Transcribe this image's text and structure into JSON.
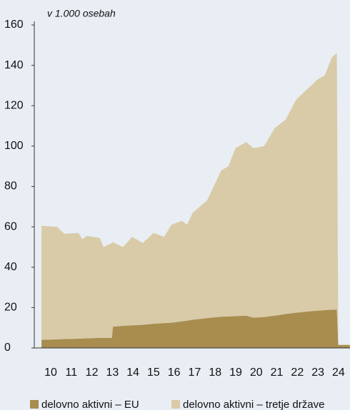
{
  "chart_data": {
    "type": "stacked_area",
    "subtitle": "v 1.000 osebah",
    "x": [
      10.05,
      10.81,
      11.16,
      11.85,
      12.03,
      12.27,
      12.89,
      13.07,
      13.48,
      13.52,
      14.01,
      14.46,
      14.98,
      15.5,
      16.02,
      16.37,
      16.89,
      17.13,
      17.41,
      18.1,
      18.8,
      19.14,
      19.49,
      20.01,
      20.36,
      20.88,
      21.4,
      21.92,
      22.44,
      22.96,
      23.48,
      23.83,
      24.18,
      24.42,
      24.49,
      25.05
    ],
    "series": [
      {
        "name": "delovno aktivni – EU",
        "color": "#a88d4f",
        "values": [
          4,
          4.3,
          4.4,
          4.6,
          4.7,
          4.8,
          5,
          5,
          5,
          10.5,
          11,
          11.2,
          11.5,
          12,
          12.3,
          12.5,
          13.2,
          13.5,
          14,
          14.8,
          15.5,
          15.6,
          15.8,
          16,
          15,
          15.3,
          16,
          16.8,
          17.5,
          18,
          18.5,
          18.7,
          19,
          19,
          1.5,
          1.5
        ]
      },
      {
        "name": "delovno aktivni – tretje države",
        "color": "#d9cba8",
        "values": [
          56.5,
          55.7,
          52.1,
          52.4,
          49.3,
          50.7,
          49.5,
          45,
          47,
          42,
          39,
          43.8,
          40.5,
          45,
          42.7,
          48.5,
          49.8,
          47.5,
          53,
          58.2,
          72.5,
          74.4,
          83.2,
          86,
          84,
          84.7,
          93,
          96.2,
          105.5,
          110,
          114.5,
          116.3,
          125,
          127,
          0,
          0
        ]
      }
    ],
    "xlim": [
      9.7,
      25.06
    ],
    "xticks": [
      {
        "value": 10.5,
        "label": "10"
      },
      {
        "value": 11.5,
        "label": "11"
      },
      {
        "value": 12.5,
        "label": "12"
      },
      {
        "value": 13.5,
        "label": "13"
      },
      {
        "value": 14.5,
        "label": "14"
      },
      {
        "value": 15.5,
        "label": "15"
      },
      {
        "value": 16.5,
        "label": "16"
      },
      {
        "value": 17.5,
        "label": "17"
      },
      {
        "value": 18.5,
        "label": "18"
      },
      {
        "value": 19.5,
        "label": "19"
      },
      {
        "value": 20.5,
        "label": "20"
      },
      {
        "value": 21.5,
        "label": "21"
      },
      {
        "value": 22.5,
        "label": "22"
      },
      {
        "value": 23.5,
        "label": "23"
      },
      {
        "value": 24.5,
        "label": "24"
      }
    ],
    "ylim": [
      0,
      160
    ],
    "yticks": [
      0,
      20,
      40,
      60,
      80,
      100,
      120,
      140,
      160
    ],
    "legend": "bottom"
  }
}
